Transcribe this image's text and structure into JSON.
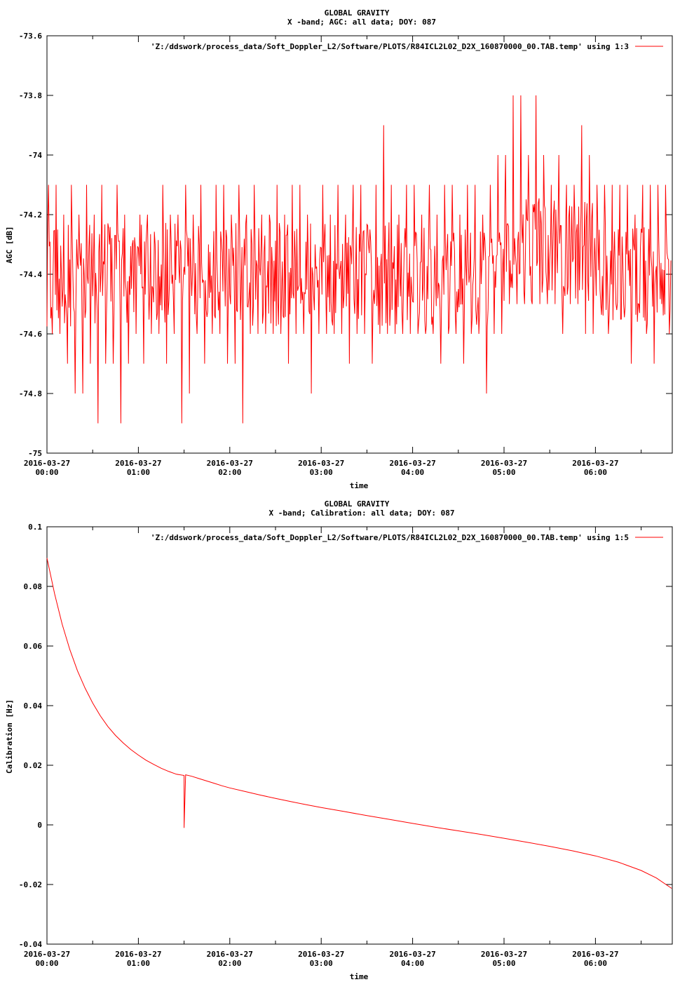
{
  "colors": {
    "series": "#ff0000",
    "axis": "#000000",
    "background": "#ffffff"
  },
  "chart_data": [
    {
      "type": "line",
      "title": "GLOBAL GRAVITY",
      "subtitle": "X -band; AGC: all data; DOY: 087",
      "xlabel": "time",
      "ylabel": "AGC [dB]",
      "xlim_hours": [
        0,
        6.84
      ],
      "ylim": [
        -75,
        -73.6
      ],
      "yticks": [
        "-73.6",
        "-73.8",
        "-74",
        "-74.2",
        "-74.4",
        "-74.6",
        "-74.8",
        "-75"
      ],
      "ytick_values": [
        -73.6,
        -73.8,
        -74,
        -74.2,
        -74.4,
        -74.6,
        -74.8,
        -75
      ],
      "xticks_date": [
        "2016-03-27",
        "2016-03-27",
        "2016-03-27",
        "2016-03-27",
        "2016-03-27",
        "2016-03-27",
        "2016-03-27"
      ],
      "xticks_time": [
        "00:00",
        "01:00",
        "02:00",
        "03:00",
        "04:00",
        "05:00",
        "06:00"
      ],
      "legend": "'Z:/ddswork/process_data/Soft_Doppler_L2/Software/PLOTS/R84ICL2L02_D2X_160870000_00.TAB.temp' using 1:3",
      "legend_position": "top-right",
      "series": [
        {
          "x": [
            "2016-03-27 00:00",
            "2016-03-27 00:05",
            "2016-03-27 00:10",
            "2016-03-27 00:15",
            "2016-03-27 00:20",
            "2016-03-27 00:25",
            "2016-03-27 00:30",
            "2016-03-27 00:35",
            "2016-03-27 00:40",
            "2016-03-27 00:45",
            "2016-03-27 00:50",
            "2016-03-27 00:55",
            "2016-03-27 01:00",
            "2016-03-27 01:05",
            "2016-03-27 01:10",
            "2016-03-27 01:15",
            "2016-03-27 01:20",
            "2016-03-27 01:25",
            "2016-03-27 01:30",
            "2016-03-27 01:35",
            "2016-03-27 01:40",
            "2016-03-27 01:45",
            "2016-03-27 01:50",
            "2016-03-27 01:55",
            "2016-03-27 02:00",
            "2016-03-27 02:05",
            "2016-03-27 02:10",
            "2016-03-27 02:15",
            "2016-03-27 02:20",
            "2016-03-27 02:25",
            "2016-03-27 02:30",
            "2016-03-27 02:35",
            "2016-03-27 02:40",
            "2016-03-27 02:45",
            "2016-03-27 02:50",
            "2016-03-27 02:55",
            "2016-03-27 03:00",
            "2016-03-27 03:05",
            "2016-03-27 03:10",
            "2016-03-27 03:15",
            "2016-03-27 03:20",
            "2016-03-27 03:25",
            "2016-03-27 03:30",
            "2016-03-27 03:35",
            "2016-03-27 03:40",
            "2016-03-27 03:45",
            "2016-03-27 03:50",
            "2016-03-27 03:55",
            "2016-03-27 04:00",
            "2016-03-27 04:05",
            "2016-03-27 04:10",
            "2016-03-27 04:15",
            "2016-03-27 04:20",
            "2016-03-27 04:25",
            "2016-03-27 04:30",
            "2016-03-27 04:35",
            "2016-03-27 04:40",
            "2016-03-27 04:45",
            "2016-03-27 04:50",
            "2016-03-27 04:55",
            "2016-03-27 05:00",
            "2016-03-27 05:05",
            "2016-03-27 05:10",
            "2016-03-27 05:15",
            "2016-03-27 05:20",
            "2016-03-27 05:25",
            "2016-03-27 05:30",
            "2016-03-27 05:35",
            "2016-03-27 05:40",
            "2016-03-27 05:45",
            "2016-03-27 05:50",
            "2016-03-27 05:55",
            "2016-03-27 06:00",
            "2016-03-27 06:05",
            "2016-03-27 06:10",
            "2016-03-27 06:15",
            "2016-03-27 06:20",
            "2016-03-27 06:25",
            "2016-03-27 06:30",
            "2016-03-27 06:35",
            "2016-03-27 06:40",
            "2016-03-27 06:45",
            "2016-03-27 06:50"
          ],
          "min": [
            -74.6,
            -74.6,
            -74.7,
            -74.8,
            -74.8,
            -74.7,
            -74.9,
            -74.7,
            -74.7,
            -74.9,
            -74.7,
            -74.6,
            -74.7,
            -74.6,
            -74.6,
            -74.7,
            -74.6,
            -74.9,
            -74.8,
            -74.6,
            -74.7,
            -74.6,
            -74.6,
            -74.7,
            -74.7,
            -74.9,
            -74.6,
            -74.6,
            -74.6,
            -74.6,
            -74.6,
            -74.7,
            -74.6,
            -74.6,
            -74.8,
            -74.6,
            -74.6,
            -74.6,
            -74.6,
            -74.7,
            -74.6,
            -74.6,
            -74.7,
            -74.6,
            -74.6,
            -74.6,
            -74.6,
            -74.6,
            -74.6,
            -74.6,
            -74.6,
            -74.7,
            -74.6,
            -74.6,
            -74.7,
            -74.6,
            -74.6,
            -74.8,
            -74.6,
            -74.6,
            -74.5,
            -74.5,
            -74.5,
            -74.5,
            -74.5,
            -74.5,
            -74.5,
            -74.6,
            -74.5,
            -74.5,
            -74.6,
            -74.6,
            -74.5,
            -74.6,
            -74.5,
            -74.5,
            -74.7,
            -74.5,
            -74.6,
            -74.7,
            -74.5,
            -74.6,
            -74.6
          ],
          "max": [
            -74.1,
            -74.1,
            -74.2,
            -74.1,
            -74.2,
            -74.1,
            -74.2,
            -74.1,
            -74.3,
            -74.1,
            -74.2,
            -74.3,
            -74.2,
            -74.2,
            -74.3,
            -74.1,
            -74.2,
            -74.2,
            -74.1,
            -74.2,
            -74.1,
            -74.3,
            -74.1,
            -74.1,
            -74.2,
            -74.1,
            -74.2,
            -74.1,
            -74.2,
            -74.2,
            -74.1,
            -74.2,
            -74.1,
            -74.1,
            -74.2,
            -74.3,
            -74.1,
            -74.2,
            -74.1,
            -74.2,
            -74.1,
            -74.1,
            -74.3,
            -74.1,
            -73.9,
            -74.1,
            -74.2,
            -74.1,
            -74.1,
            -74.2,
            -74.1,
            -74.2,
            -74.1,
            -74.1,
            -74.2,
            -74.1,
            -74.1,
            -74.2,
            -74.1,
            -74.0,
            -74.0,
            -73.8,
            -73.8,
            -74.0,
            -73.8,
            -74.0,
            -74.1,
            -74.0,
            -74.1,
            -74.1,
            -73.9,
            -74.0,
            -74.1,
            -74.1,
            -74.1,
            -74.1,
            -74.1,
            -74.2,
            -74.1,
            -74.1,
            -74.1,
            -74.1,
            -74.1
          ]
        }
      ]
    },
    {
      "type": "line",
      "title": "GLOBAL GRAVITY",
      "subtitle": "X -band; Calibration: all data; DOY: 087",
      "xlabel": "time",
      "ylabel": "Calibration [Hz]",
      "xlim_hours": [
        0,
        6.84
      ],
      "ylim": [
        -0.04,
        0.1
      ],
      "yticks": [
        "0.1",
        "0.08",
        "0.06",
        "0.04",
        "0.02",
        "0",
        "-0.02",
        "-0.04"
      ],
      "ytick_values": [
        0.1,
        0.08,
        0.06,
        0.04,
        0.02,
        0,
        -0.02,
        -0.04
      ],
      "xticks_date": [
        "2016-03-27",
        "2016-03-27",
        "2016-03-27",
        "2016-03-27",
        "2016-03-27",
        "2016-03-27",
        "2016-03-27"
      ],
      "xticks_time": [
        "00:00",
        "01:00",
        "02:00",
        "03:00",
        "04:00",
        "05:00",
        "06:00"
      ],
      "legend": "'Z:/ddswork/process_data/Soft_Doppler_L2/Software/PLOTS/R84ICL2L02_D2X_160870000_00.TAB.temp' using 1:5",
      "legend_position": "top-right",
      "series": [
        {
          "x": [
            "2016-03-27 00:00",
            "2016-03-27 00:05",
            "2016-03-27 00:10",
            "2016-03-27 00:15",
            "2016-03-27 00:20",
            "2016-03-27 00:25",
            "2016-03-27 00:30",
            "2016-03-27 00:35",
            "2016-03-27 00:40",
            "2016-03-27 00:45",
            "2016-03-27 00:50",
            "2016-03-27 00:55",
            "2016-03-27 01:00",
            "2016-03-27 01:05",
            "2016-03-27 01:10",
            "2016-03-27 01:15",
            "2016-03-27 01:20",
            "2016-03-27 01:25",
            "2016-03-27 01:30",
            "2016-03-27 01:30",
            "2016-03-27 01:30",
            "2016-03-27 01:31",
            "2016-03-27 01:35",
            "2016-03-27 01:40",
            "2016-03-27 01:45",
            "2016-03-27 01:50",
            "2016-03-27 01:55",
            "2016-03-27 02:00",
            "2016-03-27 02:10",
            "2016-03-27 02:20",
            "2016-03-27 02:30",
            "2016-03-27 02:40",
            "2016-03-27 02:50",
            "2016-03-27 03:00",
            "2016-03-27 03:15",
            "2016-03-27 03:30",
            "2016-03-27 03:45",
            "2016-03-27 04:00",
            "2016-03-27 04:15",
            "2016-03-27 04:30",
            "2016-03-27 04:45",
            "2016-03-27 05:00",
            "2016-03-27 05:15",
            "2016-03-27 05:30",
            "2016-03-27 05:45",
            "2016-03-27 06:00",
            "2016-03-27 06:15",
            "2016-03-27 06:30",
            "2016-03-27 06:40",
            "2016-03-27 06:50"
          ],
          "y": [
            0.0895,
            0.0775,
            0.0673,
            0.0588,
            0.0517,
            0.0459,
            0.0409,
            0.0366,
            0.033,
            0.03,
            0.0275,
            0.0253,
            0.0234,
            0.0217,
            0.0203,
            0.019,
            0.0179,
            0.017,
            0.0166,
            0.008,
            -0.001,
            0.0168,
            0.0163,
            0.0155,
            0.0147,
            0.0139,
            0.0131,
            0.0124,
            0.0112,
            0.01,
            0.0089,
            0.0078,
            0.0068,
            0.0058,
            0.0045,
            0.0031,
            0.0018,
            0.0005,
            -0.0008,
            -0.002,
            -0.0032,
            -0.0045,
            -0.0058,
            -0.0072,
            -0.0087,
            -0.0104,
            -0.0125,
            -0.0153,
            -0.0178,
            -0.0213
          ]
        }
      ]
    }
  ]
}
